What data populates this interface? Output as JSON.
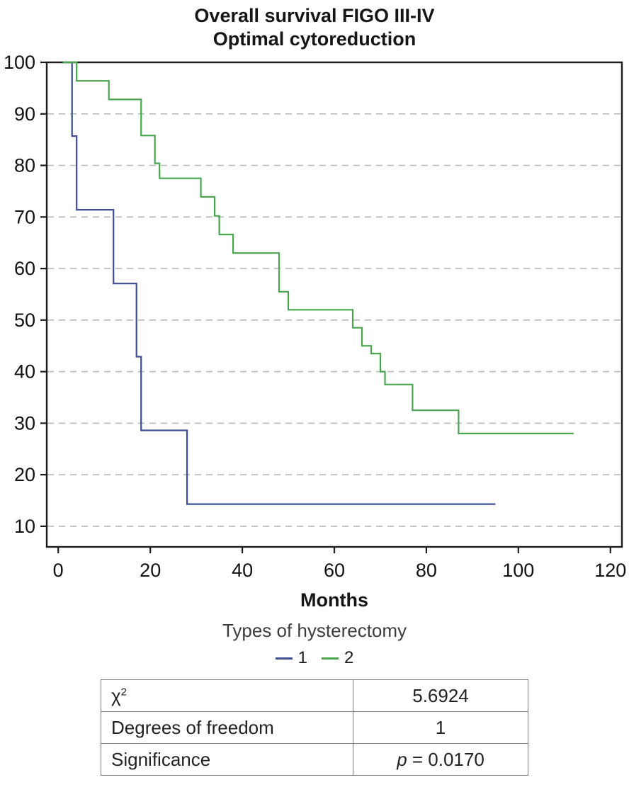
{
  "title": {
    "line1": "Overall survival FIGO III-IV",
    "line2": "Optimal cytoreduction"
  },
  "chart_data": {
    "type": "line",
    "subtype": "kaplan-meier-step",
    "title": "Overall survival FIGO III-IV Optimal cytoreduction",
    "xlabel": "Months",
    "ylabel": "",
    "xlim": [
      0,
      120
    ],
    "ylim": [
      10,
      100
    ],
    "x_ticks": [
      0,
      20,
      40,
      60,
      80,
      100,
      120
    ],
    "y_ticks": [
      10,
      20,
      30,
      40,
      50,
      60,
      70,
      80,
      90,
      100
    ],
    "grid": "horizontal-dashed",
    "axis_color": "#1c1c1c",
    "grid_color": "#b9b9b9",
    "series": [
      {
        "name": "1",
        "color": "#3e4e92",
        "points": [
          [
            1,
            100
          ],
          [
            3,
            85.7
          ],
          [
            4,
            71.4
          ],
          [
            12,
            57.1
          ],
          [
            17,
            42.9
          ],
          [
            18,
            28.6
          ],
          [
            28,
            14.3
          ]
        ],
        "end_x": 95
      },
      {
        "name": "2",
        "color": "#4aa64e",
        "points": [
          [
            1,
            100
          ],
          [
            4,
            96.4
          ],
          [
            11,
            92.8
          ],
          [
            18,
            85.8
          ],
          [
            21,
            80.4
          ],
          [
            22,
            77.5
          ],
          [
            31,
            73.9
          ],
          [
            34,
            70.2
          ],
          [
            35,
            66.6
          ],
          [
            38,
            63.0
          ],
          [
            48,
            55.5
          ],
          [
            50,
            52.0
          ],
          [
            64,
            48.5
          ],
          [
            66,
            45.0
          ],
          [
            68,
            43.5
          ],
          [
            70,
            40.0
          ],
          [
            71,
            37.5
          ],
          [
            77,
            32.5
          ],
          [
            87,
            28.0
          ]
        ],
        "end_x": 112
      }
    ]
  },
  "legend": {
    "title": "Types of hysterectomy",
    "entries": [
      {
        "label": "1",
        "color": "#3e4e92"
      },
      {
        "label": "2",
        "color": "#4aa64e"
      }
    ]
  },
  "stats_table": {
    "rows": [
      {
        "label_base": "χ",
        "label_sup": "2",
        "value": "5.6924"
      },
      {
        "label": "Degrees of freedom",
        "value": "1"
      },
      {
        "label": "Significance",
        "value_p": "p",
        "value_rest": " = 0.0170"
      }
    ]
  }
}
